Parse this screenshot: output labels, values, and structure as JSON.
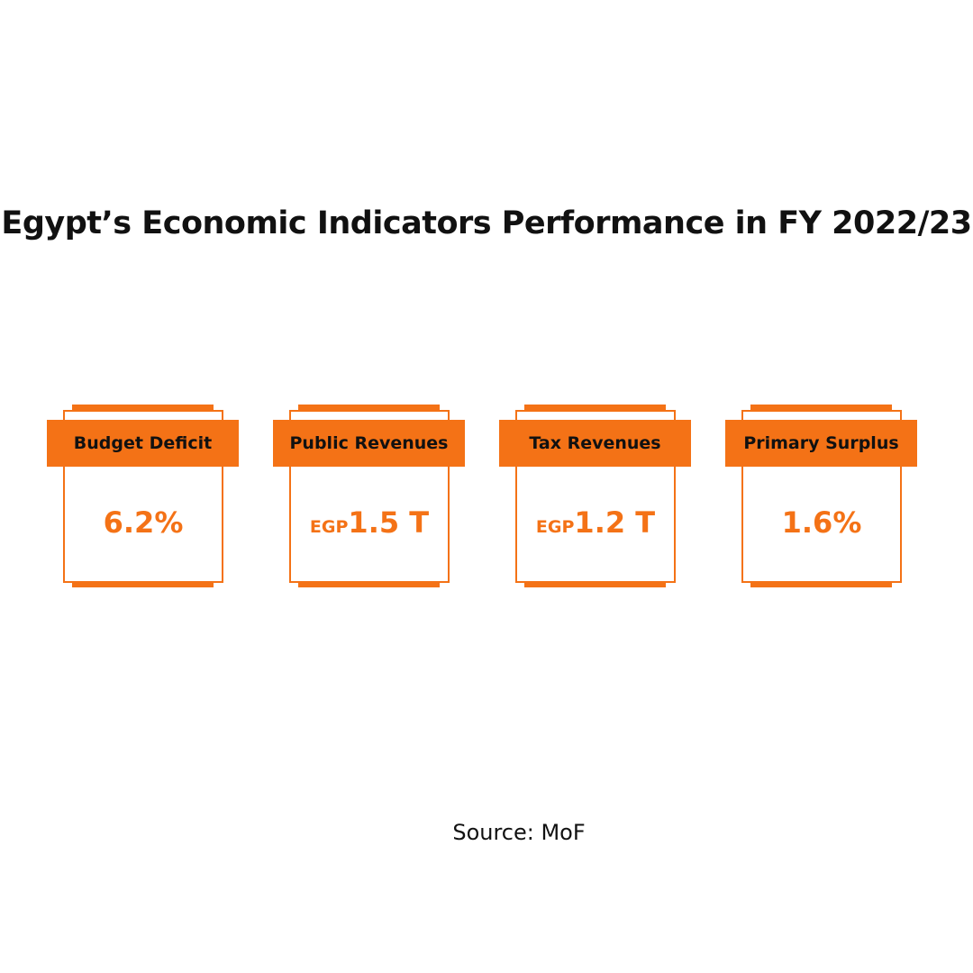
{
  "header": {
    "title": "Egypt’s Economic Indicators Performance in FY 2022/23"
  },
  "cards": [
    {
      "label": "Budget Deficit",
      "value": "6.2%"
    },
    {
      "label": "Public Revenues",
      "prefix": "EGP",
      "value": "1.5 T"
    },
    {
      "label": "Tax Revenues",
      "prefix": "EGP",
      "value": "1.2 T"
    },
    {
      "label": "Primary Surplus",
      "value": "1.6%"
    }
  ],
  "footer": {
    "source": "Source: MoF"
  }
}
